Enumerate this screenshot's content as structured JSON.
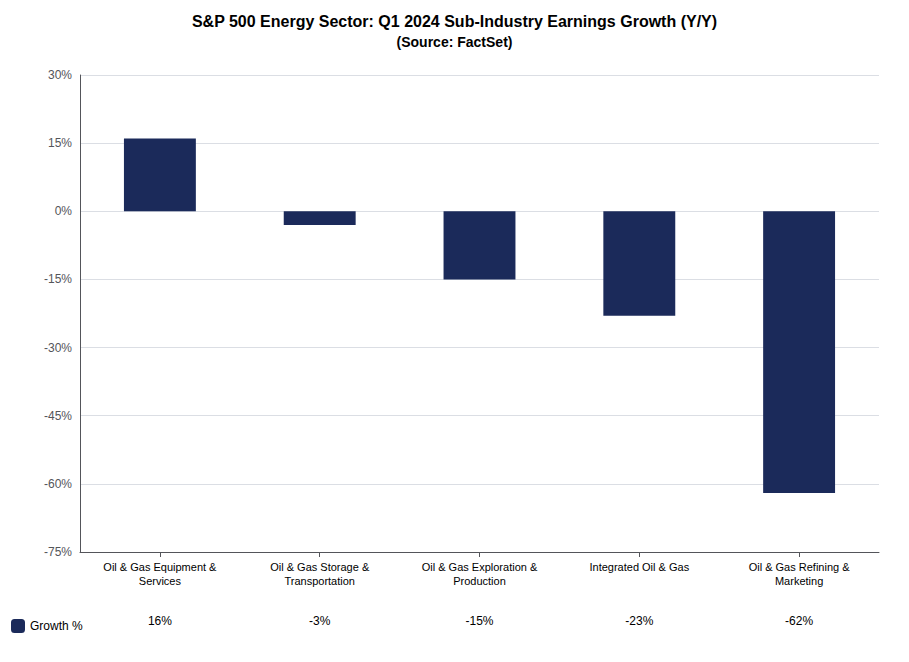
{
  "chart_data": {
    "type": "bar",
    "title": "S&P 500 Energy Sector: Q1 2024 Sub-Industry Earnings Growth (Y/Y)",
    "subtitle": "(Source: FactSet)",
    "categories": [
      "Oil & Gas Equipment &\nServices",
      "Oil & Gas Storage &\nTransportation",
      "Oil & Gas Exploration &\nProduction",
      "Integrated Oil & Gas",
      "Oil & Gas Refining &\nMarketing"
    ],
    "series": [
      {
        "name": "Growth %",
        "color": "#1B2A5A",
        "values": [
          16,
          -3,
          -15,
          -23,
          -62
        ],
        "value_labels": [
          "16%",
          "-3%",
          "-15%",
          "-23%",
          "-62%"
        ]
      }
    ],
    "ylim": [
      -75,
      30
    ],
    "yticks": [
      {
        "value": 30,
        "label": "30%"
      },
      {
        "value": 15,
        "label": "15%"
      },
      {
        "value": 0,
        "label": "0%"
      },
      {
        "value": -15,
        "label": "-15%"
      },
      {
        "value": -30,
        "label": "-30%"
      },
      {
        "value": -45,
        "label": "-45%"
      },
      {
        "value": -60,
        "label": "-60%"
      },
      {
        "value": -75,
        "label": "-75%"
      }
    ],
    "grid": true,
    "legend": "lower left"
  }
}
